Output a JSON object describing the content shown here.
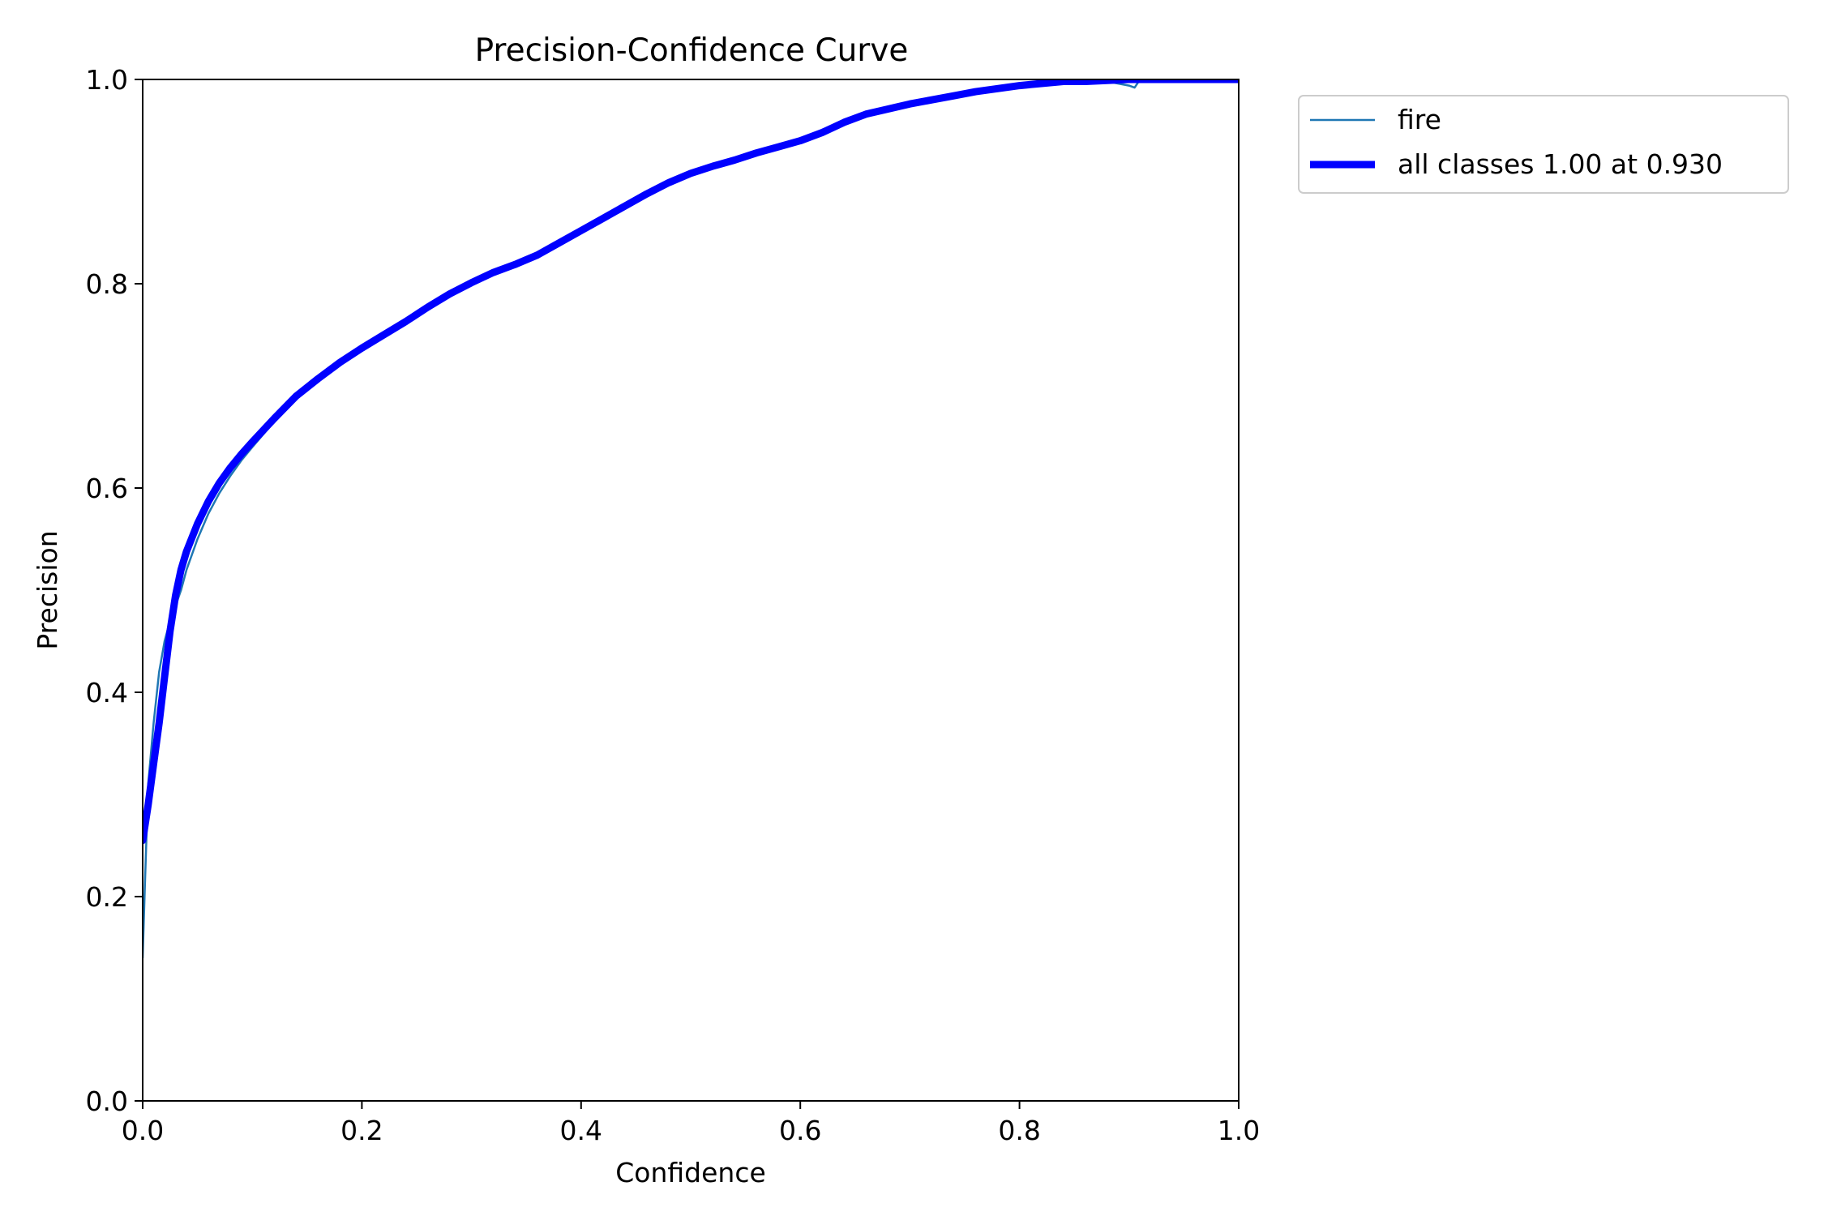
{
  "chart_data": {
    "type": "line",
    "title": "Precision-Confidence Curve",
    "xlabel": "Confidence",
    "ylabel": "Precision",
    "xlim": [
      0,
      1
    ],
    "ylim": [
      0,
      1
    ],
    "x_ticks": [
      "0.0",
      "0.2",
      "0.4",
      "0.6",
      "0.8",
      "1.0"
    ],
    "y_ticks": [
      "0.0",
      "0.2",
      "0.4",
      "0.6",
      "0.8",
      "1.0"
    ],
    "grid": false,
    "legend_position": "outside-top-right",
    "series": [
      {
        "name": "fire",
        "color": "#1f77b4",
        "style": "thin",
        "x": [
          0.0,
          0.002,
          0.005,
          0.01,
          0.015,
          0.02,
          0.025,
          0.03,
          0.035,
          0.04,
          0.05,
          0.06,
          0.07,
          0.08,
          0.09,
          0.1,
          0.12,
          0.14,
          0.16,
          0.18,
          0.2,
          0.22,
          0.24,
          0.26,
          0.28,
          0.3,
          0.32,
          0.34,
          0.36,
          0.38,
          0.4,
          0.42,
          0.44,
          0.46,
          0.48,
          0.5,
          0.52,
          0.54,
          0.56,
          0.58,
          0.6,
          0.62,
          0.64,
          0.66,
          0.68,
          0.7,
          0.72,
          0.74,
          0.76,
          0.78,
          0.8,
          0.82,
          0.84,
          0.86,
          0.88,
          0.9,
          0.905,
          0.91,
          0.93,
          0.95,
          1.0
        ],
        "y": [
          0.14,
          0.21,
          0.31,
          0.37,
          0.42,
          0.45,
          0.47,
          0.485,
          0.5,
          0.52,
          0.55,
          0.575,
          0.595,
          0.612,
          0.627,
          0.64,
          0.665,
          0.688,
          0.706,
          0.722,
          0.737,
          0.75,
          0.763,
          0.777,
          0.79,
          0.801,
          0.811,
          0.819,
          0.828,
          0.84,
          0.852,
          0.864,
          0.876,
          0.888,
          0.899,
          0.908,
          0.915,
          0.921,
          0.928,
          0.934,
          0.94,
          0.948,
          0.958,
          0.966,
          0.971,
          0.976,
          0.98,
          0.984,
          0.988,
          0.991,
          0.994,
          0.996,
          0.998,
          0.997,
          0.998,
          0.994,
          0.992,
          1.0,
          1.0,
          1.0,
          1.0
        ]
      },
      {
        "name": "all classes 1.00 at 0.930",
        "color": "#0000ff",
        "style": "thick",
        "x": [
          0.0,
          0.005,
          0.01,
          0.015,
          0.02,
          0.025,
          0.03,
          0.035,
          0.04,
          0.05,
          0.06,
          0.07,
          0.08,
          0.09,
          0.1,
          0.12,
          0.14,
          0.16,
          0.18,
          0.2,
          0.22,
          0.24,
          0.26,
          0.28,
          0.3,
          0.32,
          0.34,
          0.36,
          0.38,
          0.4,
          0.42,
          0.44,
          0.46,
          0.48,
          0.5,
          0.52,
          0.54,
          0.56,
          0.58,
          0.6,
          0.62,
          0.64,
          0.66,
          0.68,
          0.7,
          0.72,
          0.74,
          0.76,
          0.78,
          0.8,
          0.82,
          0.84,
          0.86,
          0.88,
          0.9,
          0.93,
          0.95,
          1.0
        ],
        "y": [
          0.255,
          0.29,
          0.33,
          0.37,
          0.415,
          0.46,
          0.495,
          0.52,
          0.538,
          0.565,
          0.587,
          0.605,
          0.62,
          0.633,
          0.645,
          0.668,
          0.69,
          0.707,
          0.723,
          0.737,
          0.75,
          0.763,
          0.777,
          0.79,
          0.801,
          0.811,
          0.819,
          0.828,
          0.84,
          0.852,
          0.864,
          0.876,
          0.888,
          0.899,
          0.908,
          0.915,
          0.921,
          0.928,
          0.934,
          0.94,
          0.948,
          0.958,
          0.966,
          0.971,
          0.976,
          0.98,
          0.984,
          0.988,
          0.991,
          0.994,
          0.996,
          0.998,
          0.998,
          0.999,
          1.0,
          1.0,
          1.0,
          1.0
        ]
      }
    ]
  }
}
